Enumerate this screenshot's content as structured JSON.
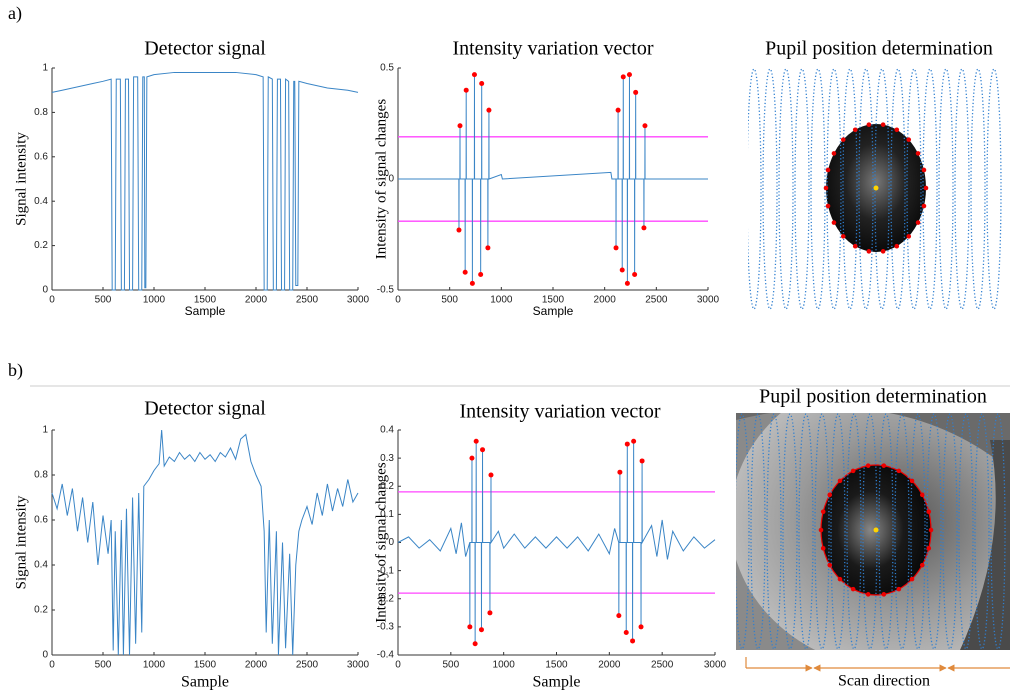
{
  "panel_labels": [
    "a)",
    "b)"
  ],
  "pupil_panels": [
    {
      "title": "Pupil position determination"
    },
    {
      "title": "Pupil position determination",
      "caption": "Scan direction"
    }
  ],
  "chart_data": [
    {
      "type": "line",
      "title": "Detector signal",
      "xlabel": "Sample",
      "ylabel": "Signal intensity",
      "xlim": [
        0,
        3000
      ],
      "ylim": [
        0,
        1
      ],
      "xticks": [
        0,
        500,
        1000,
        1500,
        2000,
        2500,
        3000
      ],
      "yticks": [
        0,
        0.2,
        0.4,
        0.6,
        0.8,
        1
      ],
      "x": [
        0,
        100,
        200,
        300,
        400,
        500,
        580,
        590,
        620,
        630,
        670,
        680,
        710,
        720,
        750,
        760,
        790,
        800,
        840,
        850,
        880,
        890,
        905,
        910,
        920,
        930,
        1000,
        1200,
        1500,
        1800,
        2000,
        2070,
        2080,
        2110,
        2120,
        2160,
        2170,
        2200,
        2210,
        2240,
        2250,
        2280,
        2290,
        2320,
        2330,
        2360,
        2370,
        2380,
        2390,
        2410,
        2420,
        2500,
        2700,
        2900,
        3000
      ],
      "series": [
        {
          "color": "#3a85c6",
          "values": [
            0.89,
            0.9,
            0.91,
            0.92,
            0.93,
            0.94,
            0.95,
            0,
            0,
            0.95,
            0.95,
            0,
            0,
            0.95,
            0.95,
            0,
            0,
            0.96,
            0.96,
            0,
            0,
            0.96,
            0.96,
            0.01,
            0.01,
            0.96,
            0.97,
            0.98,
            0.98,
            0.98,
            0.97,
            0.96,
            0,
            0,
            0.96,
            0.95,
            0,
            0,
            0.95,
            0.95,
            0,
            0,
            0.95,
            0.94,
            0,
            0,
            0.94,
            0.94,
            0.02,
            0.02,
            0.94,
            0.93,
            0.91,
            0.9,
            0.89
          ]
        }
      ]
    },
    {
      "type": "line",
      "title": "Intensity variation vector",
      "xlabel": "Sample",
      "ylabel": "Intensity of signal changes",
      "xlim": [
        0,
        3000
      ],
      "ylim": [
        -0.5,
        0.5
      ],
      "xticks": [
        0,
        500,
        1000,
        1500,
        2000,
        2500,
        3000
      ],
      "yticks": [
        -0.5,
        0,
        0.5
      ],
      "x": [
        0,
        589,
        590,
        591,
        599,
        600,
        601,
        649,
        650,
        651,
        659,
        660,
        661,
        719,
        720,
        721,
        739,
        740,
        741,
        799,
        800,
        801,
        809,
        810,
        811,
        869,
        870,
        871,
        879,
        880,
        881,
        1000,
        1010,
        2060,
        2070,
        2109,
        2110,
        2111,
        2129,
        2130,
        2131,
        2169,
        2170,
        2171,
        2179,
        2180,
        2181,
        2219,
        2220,
        2221,
        2239,
        2240,
        2241,
        2289,
        2290,
        2291,
        2299,
        2300,
        2301,
        2379,
        2380,
        2381,
        2389,
        2390,
        2391,
        3000
      ],
      "series": [
        {
          "color": "#3a85c6",
          "values": [
            0,
            0,
            -0.23,
            0,
            0,
            0.24,
            0,
            0,
            -0.42,
            0,
            0,
            0.4,
            0,
            0,
            -0.47,
            0,
            0,
            0.47,
            0,
            0,
            -0.43,
            0,
            0,
            0.43,
            0,
            0,
            -0.31,
            0,
            0,
            0.31,
            0,
            0.02,
            0,
            0.03,
            0,
            0,
            -0.31,
            0,
            0,
            0.31,
            0,
            0,
            -0.41,
            0,
            0,
            0.46,
            0,
            0,
            -0.47,
            0,
            0,
            0.47,
            0,
            0,
            -0.43,
            0,
            0,
            0.39,
            0,
            0,
            -0.22,
            0,
            0,
            0.24,
            0,
            0
          ]
        }
      ],
      "peaks": {
        "color": "#ff0000",
        "x": [
          590,
          600,
          650,
          660,
          720,
          740,
          800,
          810,
          870,
          880,
          2110,
          2130,
          2170,
          2180,
          2220,
          2240,
          2290,
          2300,
          2380,
          2390
        ],
        "values": [
          -0.23,
          0.24,
          -0.42,
          0.4,
          -0.47,
          0.47,
          -0.43,
          0.43,
          -0.31,
          0.31,
          -0.31,
          0.31,
          -0.41,
          0.46,
          -0.47,
          0.47,
          -0.43,
          0.39,
          -0.22,
          0.24
        ]
      },
      "thresholds": {
        "color": "#ff44ff",
        "values": [
          0.19,
          -0.19
        ]
      }
    },
    {
      "type": "line",
      "title": "Detector signal",
      "xlabel": "Sample",
      "ylabel": "Signal intensity",
      "xlim": [
        0,
        3000
      ],
      "ylim": [
        0,
        1
      ],
      "xticks": [
        0,
        500,
        1000,
        1500,
        2000,
        2500,
        3000
      ],
      "yticks": [
        0,
        0.2,
        0.4,
        0.6,
        0.8,
        1
      ],
      "x": [
        0,
        50,
        100,
        150,
        200,
        250,
        300,
        350,
        400,
        450,
        500,
        550,
        580,
        600,
        620,
        650,
        680,
        700,
        730,
        760,
        790,
        820,
        850,
        880,
        900,
        950,
        1000,
        1050,
        1075,
        1100,
        1150,
        1200,
        1250,
        1300,
        1350,
        1400,
        1450,
        1500,
        1550,
        1600,
        1650,
        1700,
        1750,
        1800,
        1850,
        1900,
        1950,
        2000,
        2050,
        2080,
        2100,
        2130,
        2160,
        2200,
        2220,
        2260,
        2290,
        2330,
        2360,
        2390,
        2420,
        2450,
        2500,
        2550,
        2600,
        2650,
        2700,
        2750,
        2800,
        2850,
        2900,
        2950,
        3000
      ],
      "series": [
        {
          "color": "#3a85c6",
          "values": [
            0.72,
            0.65,
            0.76,
            0.62,
            0.74,
            0.55,
            0.7,
            0.5,
            0.68,
            0.4,
            0.62,
            0.45,
            0.6,
            0.02,
            0.55,
            0,
            0.6,
            0,
            0.65,
            0,
            0.7,
            0.05,
            0.72,
            0.1,
            0.75,
            0.78,
            0.82,
            0.85,
            1,
            0.84,
            0.88,
            0.86,
            0.9,
            0.87,
            0.89,
            0.86,
            0.9,
            0.87,
            0.89,
            0.86,
            0.9,
            0.88,
            0.92,
            0.87,
            0.96,
            0.98,
            0.86,
            0.8,
            0.75,
            0.55,
            0.1,
            0.6,
            0.05,
            0.55,
            0,
            0.5,
            0.03,
            0.45,
            0,
            0.4,
            0.55,
            0.6,
            0.66,
            0.58,
            0.72,
            0.62,
            0.76,
            0.64,
            0.74,
            0.66,
            0.78,
            0.68,
            0.72
          ]
        }
      ]
    },
    {
      "type": "line",
      "title": "Intensity variation vector",
      "xlabel": "Sample",
      "ylabel": "Intensity of signal changes",
      "xlim": [
        0,
        3000
      ],
      "ylim": [
        -0.4,
        0.4
      ],
      "xticks": [
        0,
        500,
        1000,
        1500,
        2000,
        2500,
        3000
      ],
      "yticks": [
        -0.4,
        -0.3,
        -0.2,
        -0.1,
        0,
        0.1,
        0.2,
        0.3,
        0.4
      ],
      "x": [
        0,
        100,
        200,
        300,
        400,
        500,
        550,
        600,
        640,
        679,
        680,
        681,
        699,
        700,
        701,
        729,
        730,
        731,
        739,
        740,
        741,
        789,
        790,
        791,
        799,
        800,
        801,
        869,
        870,
        871,
        879,
        880,
        881,
        950,
        1000,
        1100,
        1200,
        1300,
        1400,
        1500,
        1600,
        1700,
        1800,
        1900,
        2000,
        2050,
        2089,
        2090,
        2091,
        2099,
        2100,
        2101,
        2159,
        2160,
        2161,
        2169,
        2170,
        2171,
        2219,
        2220,
        2221,
        2229,
        2230,
        2231,
        2299,
        2300,
        2301,
        2309,
        2310,
        2311,
        2400,
        2450,
        2500,
        2550,
        2600,
        2700,
        2800,
        2900,
        3000
      ],
      "series": [
        {
          "color": "#3a85c6",
          "values": [
            0,
            0.02,
            -0.02,
            0.01,
            -0.03,
            0.05,
            -0.04,
            0.07,
            -0.05,
            0,
            -0.3,
            0,
            0,
            0.3,
            0,
            0,
            -0.36,
            0,
            0,
            0.36,
            0,
            0,
            -0.31,
            0,
            0,
            0.33,
            0,
            0,
            -0.25,
            0,
            0,
            0.24,
            0,
            0.04,
            -0.02,
            0.03,
            -0.02,
            0.02,
            -0.02,
            0.02,
            -0.02,
            0.02,
            -0.03,
            0.03,
            -0.04,
            0.05,
            0,
            -0.26,
            0,
            0,
            0.25,
            0,
            0,
            -0.32,
            0,
            0,
            0.35,
            0,
            0,
            -0.35,
            0,
            0,
            0.36,
            0,
            0,
            -0.3,
            0,
            0,
            0.29,
            0,
            0.06,
            -0.05,
            0.08,
            -0.06,
            0.04,
            -0.03,
            0.02,
            -0.02,
            0.01
          ]
        }
      ],
      "peaks": {
        "color": "#ff0000",
        "x": [
          680,
          700,
          730,
          740,
          790,
          800,
          870,
          880,
          2090,
          2100,
          2160,
          2170,
          2220,
          2230,
          2300,
          2310
        ],
        "values": [
          -0.3,
          0.3,
          -0.36,
          0.36,
          -0.31,
          0.33,
          -0.25,
          0.24,
          -0.26,
          0.25,
          -0.32,
          0.35,
          -0.35,
          0.36,
          -0.3,
          0.29
        ]
      },
      "thresholds": {
        "color": "#ff44ff",
        "values": [
          0.18,
          -0.18
        ]
      }
    }
  ]
}
